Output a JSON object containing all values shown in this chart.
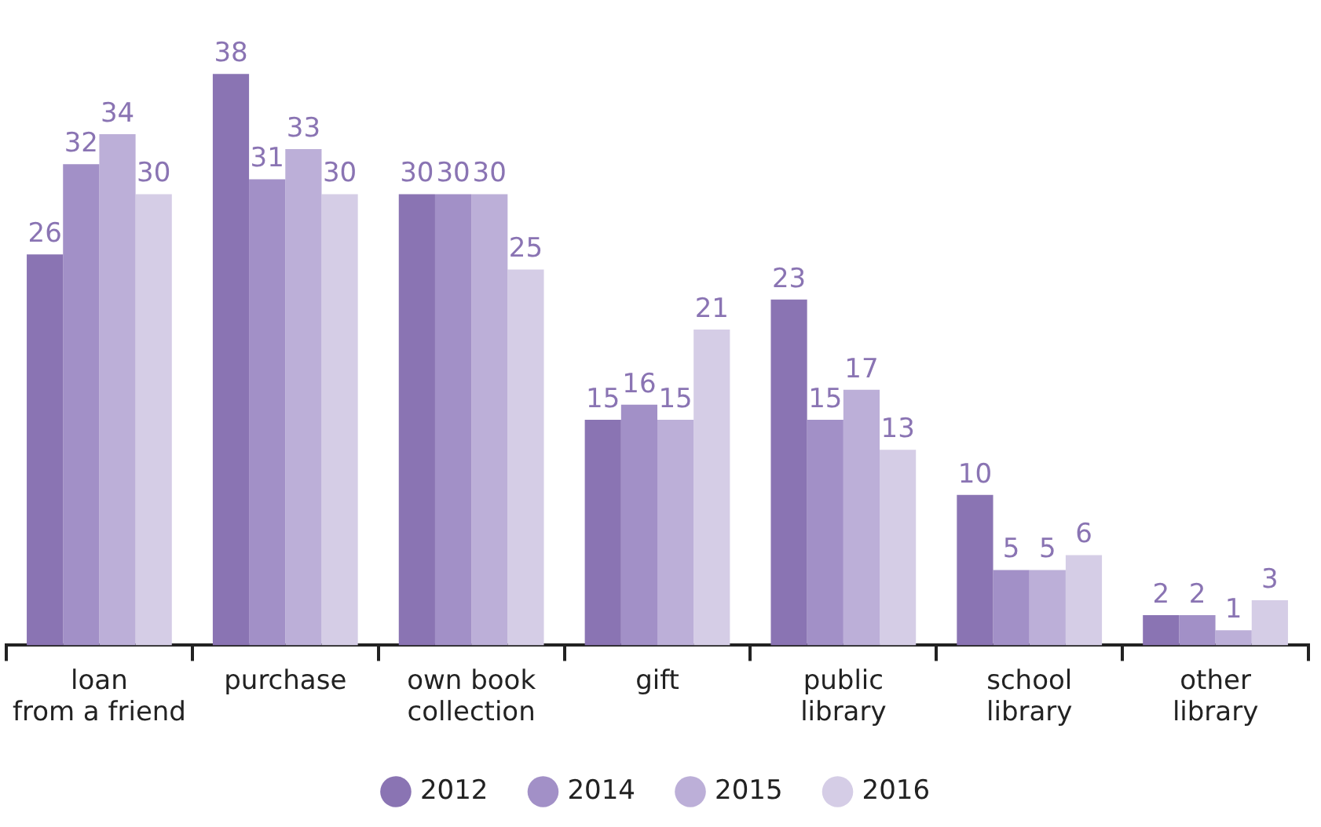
{
  "chart_data": {
    "type": "bar",
    "categories": [
      "loan\nfrom a friend",
      "purchase",
      "own book\ncollection",
      "gift",
      "public\nlibrary",
      "school\nlibrary",
      "other\nlibrary"
    ],
    "series": [
      {
        "name": "2012",
        "color": "#8a74b3",
        "values": [
          26,
          38,
          30,
          15,
          23,
          10,
          2
        ]
      },
      {
        "name": "2014",
        "color": "#a290c7",
        "values": [
          32,
          31,
          30,
          16,
          15,
          5,
          2
        ]
      },
      {
        "name": "2015",
        "color": "#bcafd8",
        "values": [
          34,
          33,
          30,
          15,
          17,
          5,
          1
        ]
      },
      {
        "name": "2016",
        "color": "#d5cde6",
        "values": [
          30,
          30,
          25,
          21,
          13,
          6,
          3
        ]
      }
    ],
    "data_labels": true,
    "grid": false,
    "legend": "bottom"
  }
}
